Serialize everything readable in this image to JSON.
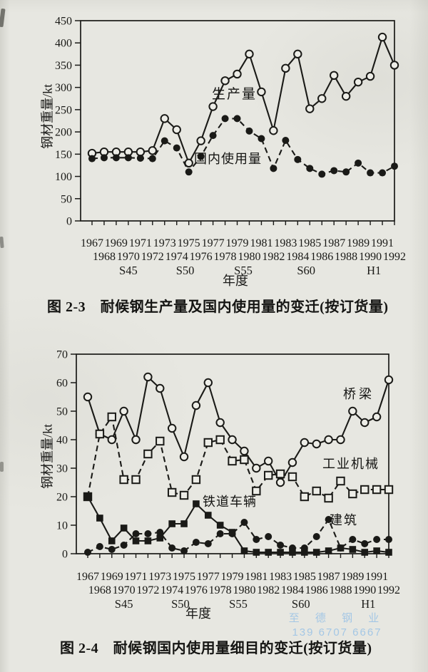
{
  "page": {
    "background": "#e7e7e1",
    "watermark": {
      "line1": "至 德 钢 业",
      "line2": "139 6707 6667",
      "color": "#a4c7e5"
    }
  },
  "captions": {
    "fig23": "图 2-3　耐候钢生产量及国内使用量的变迁(按订货量)",
    "fig24": "图 2-4　耐候钢国内使用量细目的变迁(按订货量)"
  },
  "chart_data": [
    {
      "id": "chart-2-3",
      "type": "line",
      "title": "耐候钢生产量及国内使用量的变迁(按订货量)",
      "ylabel": "钢材重量/kt",
      "xlabel": "年度",
      "ylim": [
        0,
        450
      ],
      "ytick_step": 50,
      "grid": false,
      "legend_position": "inline-labels",
      "years": [
        1967,
        1968,
        1969,
        1970,
        1971,
        1972,
        1973,
        1974,
        1975,
        1976,
        1977,
        1978,
        1979,
        1980,
        1981,
        1982,
        1983,
        1984,
        1985,
        1986,
        1987,
        1988,
        1989,
        1990,
        1991,
        1992
      ],
      "era_labels": [
        {
          "label": "S45",
          "year": 1970
        },
        {
          "label": "S50",
          "year": 1974.7
        },
        {
          "label": "S55",
          "year": 1979.5
        },
        {
          "label": "S60",
          "year": 1984.7
        },
        {
          "label": "H1",
          "year": 1990.3
        }
      ],
      "series": [
        {
          "name": "生产量",
          "marker": "circle-open",
          "line": "solid",
          "values": [
            152,
            155,
            155,
            155,
            155,
            158,
            230,
            205,
            130,
            180,
            257,
            315,
            330,
            375,
            290,
            203,
            343,
            375,
            252,
            275,
            327,
            280,
            312,
            325,
            413,
            350
          ]
        },
        {
          "name": "国内使用量",
          "marker": "circle-filled",
          "line": "dashed",
          "values": [
            140,
            142,
            142,
            142,
            141,
            140,
            180,
            164,
            110,
            145,
            192,
            230,
            230,
            202,
            185,
            118,
            181,
            138,
            118,
            105,
            113,
            110,
            130,
            108,
            108,
            123
          ]
        }
      ]
    },
    {
      "id": "chart-2-4",
      "type": "line",
      "title": "耐候钢国内使用量细目的变迁(按订货量)",
      "ylabel": "钢材重量/kt",
      "xlabel": "年度",
      "ylim": [
        0,
        70
      ],
      "ytick_step": 10,
      "grid": false,
      "legend_position": "inline-labels",
      "years": [
        1967,
        1968,
        1969,
        1970,
        1971,
        1972,
        1973,
        1974,
        1975,
        1976,
        1977,
        1978,
        1979,
        1980,
        1981,
        1982,
        1983,
        1984,
        1985,
        1986,
        1987,
        1988,
        1989,
        1990,
        1991,
        1992
      ],
      "era_labels": [
        {
          "label": "S45",
          "year": 1970
        },
        {
          "label": "S50",
          "year": 1974.7
        },
        {
          "label": "S55",
          "year": 1979.5
        },
        {
          "label": "S60",
          "year": 1984.7
        },
        {
          "label": "H1",
          "year": 1990.3
        }
      ],
      "series": [
        {
          "name": "桥梁",
          "marker": "circle-open",
          "line": "solid",
          "values": [
            55,
            42,
            40,
            50,
            40,
            62,
            58,
            44,
            34,
            52,
            60,
            46,
            40,
            36,
            30,
            32.5,
            25,
            32,
            39,
            38.5,
            40,
            40,
            50,
            46,
            48,
            61
          ]
        },
        {
          "name": "工业机械",
          "marker": "square-open",
          "line": "dashed",
          "values": [
            20,
            42,
            48,
            26,
            26,
            35,
            39.5,
            21.5,
            20.5,
            26,
            39,
            40,
            32.5,
            33,
            22,
            27.5,
            28,
            27,
            20,
            22,
            19.5,
            25.5,
            21,
            22.5,
            22.5,
            22.5
          ]
        },
        {
          "name": "铁道车辆",
          "marker": "square-filled",
          "line": "solid",
          "values": [
            20,
            12.5,
            4.5,
            9,
            4.5,
            4.5,
            5.5,
            10.5,
            10.5,
            17.5,
            13.5,
            10,
            7.5,
            1,
            0.5,
            0.5,
            0.5,
            0.5,
            0.5,
            0.5,
            1,
            2,
            1.5,
            0.5,
            1,
            0.5
          ]
        },
        {
          "name": "建筑",
          "marker": "circle-filled",
          "line": "dashed",
          "values": [
            0.5,
            2.5,
            1.5,
            3,
            7,
            7,
            7.5,
            2,
            1,
            4,
            3.5,
            7,
            7,
            11,
            5,
            6,
            3,
            2,
            2,
            6,
            12,
            2,
            5,
            3.5,
            5,
            5
          ]
        }
      ]
    }
  ]
}
